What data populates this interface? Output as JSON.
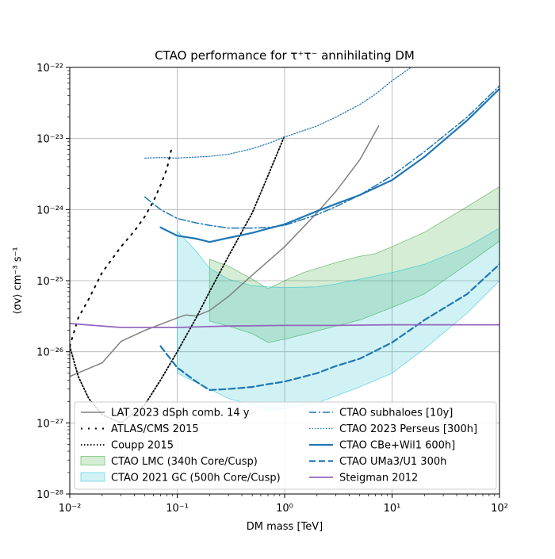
{
  "chart_data": {
    "type": "line",
    "title": "CTAO performance for τ⁺τ⁻ annihilating DM",
    "xlabel": "DM mass [TeV]",
    "ylabel": "⟨σv⟩ cm⁻³ s⁻¹",
    "xscale": "log",
    "yscale": "log",
    "xlim": [
      0.01,
      100
    ],
    "ylim": [
      1e-28,
      1e-22
    ],
    "grid": true,
    "legend_position": "lower-center",
    "x_ticks": [
      {
        "value": 0.01,
        "label": "10⁻²"
      },
      {
        "value": 0.1,
        "label": "10⁻¹"
      },
      {
        "value": 1,
        "label": "10⁰"
      },
      {
        "value": 10,
        "label": "10¹"
      },
      {
        "value": 100,
        "label": "10²"
      }
    ],
    "y_ticks": [
      {
        "value": 1e-28,
        "label": "10⁻²⁸"
      },
      {
        "value": 1e-27,
        "label": "10⁻²⁷"
      },
      {
        "value": 1e-26,
        "label": "10⁻²⁶"
      },
      {
        "value": 1e-25,
        "label": "10⁻²⁵"
      },
      {
        "value": 1e-24,
        "label": "10⁻²⁴"
      },
      {
        "value": 1e-23,
        "label": "10⁻²³"
      },
      {
        "value": 1e-22,
        "label": "10⁻²²"
      }
    ],
    "bands": [
      {
        "name": "CTAO LMC (340h Core/Cusp)",
        "fill": "#2ca02c",
        "fill_opacity": 0.2,
        "upper": [
          [
            0.2,
            2e-25
          ],
          [
            0.3,
            1.6e-25
          ],
          [
            0.5,
            1.05e-25
          ],
          [
            0.7,
            7.7e-26
          ],
          [
            1.0,
            1e-25
          ],
          [
            1.5,
            1.3e-25
          ],
          [
            3,
            1.8e-25
          ],
          [
            5,
            2.2e-25
          ],
          [
            7,
            2.4e-25
          ],
          [
            10,
            3e-25
          ],
          [
            20,
            4.8e-25
          ],
          [
            50,
            1.1e-24
          ],
          [
            100,
            2.1e-24
          ]
        ],
        "lower": [
          [
            0.2,
            2.7e-26
          ],
          [
            0.3,
            2.3e-26
          ],
          [
            0.5,
            1.8e-26
          ],
          [
            0.7,
            1.35e-26
          ],
          [
            1.0,
            1.5e-26
          ],
          [
            1.5,
            1.75e-26
          ],
          [
            3,
            2.3e-26
          ],
          [
            5,
            2.8e-26
          ],
          [
            10,
            4.2e-26
          ],
          [
            20,
            6.5e-26
          ],
          [
            50,
            1.7e-25
          ],
          [
            100,
            3.6e-25
          ]
        ]
      },
      {
        "name": "CTAO 2021 GC (500h Core/Cusp)",
        "fill": "#17becf",
        "fill_opacity": 0.2,
        "upper": [
          [
            0.1,
            5e-25
          ],
          [
            0.15,
            2.6e-25
          ],
          [
            0.2,
            1.5e-25
          ],
          [
            0.3,
            1.05e-25
          ],
          [
            0.5,
            8.5e-26
          ],
          [
            0.7,
            8.2e-26
          ],
          [
            1.0,
            8e-26
          ],
          [
            2,
            8.2e-26
          ],
          [
            3,
            9e-26
          ],
          [
            5,
            1.05e-25
          ],
          [
            10,
            1.3e-25
          ],
          [
            20,
            1.7e-25
          ],
          [
            50,
            3e-25
          ],
          [
            100,
            5.5e-25
          ]
        ],
        "lower": [
          [
            0.1,
            5e-27
          ],
          [
            0.2,
            3e-27
          ],
          [
            0.3,
            2.2e-27
          ],
          [
            0.5,
            1.8e-27
          ],
          [
            0.7,
            1.5e-27
          ],
          [
            1.0,
            1.6e-27
          ],
          [
            2,
            1.9e-27
          ],
          [
            3,
            2.4e-27
          ],
          [
            5,
            3.2e-27
          ],
          [
            10,
            5e-27
          ],
          [
            20,
            1.1e-26
          ],
          [
            50,
            3.5e-26
          ],
          [
            100,
            1e-25
          ]
        ]
      }
    ],
    "series": [
      {
        "name": "LAT 2023 dSph comb. 14 y",
        "color": "#808080",
        "width": 1.5,
        "dash": "none",
        "points": [
          [
            0.01,
            4.5e-27
          ],
          [
            0.02,
            7e-27
          ],
          [
            0.03,
            1.4e-26
          ],
          [
            0.05,
            2e-26
          ],
          [
            0.1,
            3e-26
          ],
          [
            0.12,
            3.3e-26
          ],
          [
            0.15,
            3.2e-26
          ],
          [
            0.2,
            3.8e-26
          ],
          [
            0.3,
            6e-26
          ],
          [
            0.5,
            1.2e-25
          ],
          [
            1,
            3e-25
          ],
          [
            2,
            9e-25
          ],
          [
            3,
            1.8e-24
          ],
          [
            5,
            5e-24
          ],
          [
            7.5,
            1.5e-23
          ]
        ]
      },
      {
        "name": "ATLAS/CMS 2015",
        "color": "#000000",
        "width": 2,
        "dash": "2 7",
        "points": [
          [
            0.01,
            1.2e-26
          ],
          [
            0.012,
            3e-26
          ],
          [
            0.015,
            5.5e-26
          ],
          [
            0.02,
            1.3e-25
          ],
          [
            0.03,
            3e-25
          ],
          [
            0.04,
            5e-25
          ],
          [
            0.05,
            8e-25
          ],
          [
            0.06,
            1.3e-24
          ],
          [
            0.07,
            2.2e-24
          ],
          [
            0.08,
            3.7e-24
          ],
          [
            0.09,
            8e-24
          ]
        ]
      },
      {
        "name": "Coupp 2015",
        "color": "#000000",
        "width": 1.8,
        "dash": "1.5 2.5",
        "points": [
          [
            0.01,
            1.2e-26
          ],
          [
            0.012,
            4.5e-27
          ],
          [
            0.015,
            2.2e-27
          ],
          [
            0.02,
            1.3e-27
          ],
          [
            0.03,
            1e-27
          ],
          [
            0.05,
            1.8e-27
          ],
          [
            0.07,
            4e-27
          ],
          [
            0.1,
            1e-26
          ],
          [
            0.15,
            3e-26
          ],
          [
            0.2,
            7e-26
          ],
          [
            0.3,
            2.2e-25
          ],
          [
            0.5,
            9e-25
          ],
          [
            0.7,
            3e-24
          ],
          [
            1.0,
            1.1e-23
          ]
        ]
      },
      {
        "name": "CTAO subhaloes [10y]",
        "color": "#1f77b4",
        "width": 1.5,
        "dash": "9 3 2 3",
        "points": [
          [
            0.05,
            1.5e-24
          ],
          [
            0.07,
            1e-24
          ],
          [
            0.1,
            7.5e-25
          ],
          [
            0.15,
            6.5e-25
          ],
          [
            0.2,
            6e-25
          ],
          [
            0.3,
            5.5e-25
          ],
          [
            0.5,
            5.5e-25
          ],
          [
            0.7,
            5.6e-25
          ],
          [
            1.0,
            6e-25
          ],
          [
            2,
            8.5e-25
          ],
          [
            3,
            1.1e-24
          ],
          [
            5,
            1.6e-24
          ],
          [
            10,
            3e-24
          ],
          [
            20,
            6.5e-24
          ],
          [
            50,
            2e-23
          ],
          [
            100,
            5.5e-23
          ]
        ]
      },
      {
        "name": "CTAO 2023 Perseus [300h]",
        "color": "#1f77b4",
        "width": 1.2,
        "dash": "1.5 2",
        "points": [
          [
            0.05,
            5.3e-24
          ],
          [
            0.07,
            5.4e-24
          ],
          [
            0.1,
            5.3e-24
          ],
          [
            0.2,
            5.6e-24
          ],
          [
            0.3,
            6e-24
          ],
          [
            0.5,
            7.2e-24
          ],
          [
            0.7,
            8.5e-24
          ],
          [
            1.0,
            1.05e-23
          ],
          [
            2,
            1.5e-23
          ],
          [
            3,
            2e-23
          ],
          [
            5,
            3e-23
          ],
          [
            7,
            4.2e-23
          ],
          [
            10,
            6.5e-23
          ],
          [
            15,
            1e-22
          ]
        ]
      },
      {
        "name": "CTAO CBe+Wil1 600h]",
        "color": "#1f77b4",
        "width": 2.2,
        "dash": "none",
        "points": [
          [
            0.07,
            5.6e-25
          ],
          [
            0.1,
            4.3e-25
          ],
          [
            0.15,
            3.9e-25
          ],
          [
            0.2,
            3.5e-25
          ],
          [
            0.3,
            4e-25
          ],
          [
            0.5,
            4.7e-25
          ],
          [
            0.7,
            5.4e-25
          ],
          [
            1.0,
            6.2e-25
          ],
          [
            2,
            9.5e-25
          ],
          [
            3,
            1.2e-24
          ],
          [
            5,
            1.6e-24
          ],
          [
            10,
            2.6e-24
          ],
          [
            20,
            5.5e-24
          ],
          [
            50,
            1.8e-23
          ],
          [
            100,
            5e-23
          ]
        ]
      },
      {
        "name": "CTAO UMa3/U1 300h",
        "color": "#1f77b4",
        "width": 2.2,
        "dash": "8 4",
        "points": [
          [
            0.07,
            1.2e-26
          ],
          [
            0.1,
            6e-27
          ],
          [
            0.15,
            3.8e-27
          ],
          [
            0.2,
            2.9e-27
          ],
          [
            0.3,
            3e-27
          ],
          [
            0.5,
            3.2e-27
          ],
          [
            0.7,
            3.5e-27
          ],
          [
            1.0,
            3.8e-27
          ],
          [
            2,
            5e-27
          ],
          [
            3,
            6.3e-27
          ],
          [
            5,
            8e-27
          ],
          [
            10,
            1.35e-26
          ],
          [
            20,
            2.8e-26
          ],
          [
            50,
            6.5e-26
          ],
          [
            100,
            1.7e-25
          ]
        ]
      },
      {
        "name": "Steigman 2012",
        "color": "#9467bd",
        "width": 1.8,
        "dash": "none",
        "points": [
          [
            0.01,
            2.5e-26
          ],
          [
            0.02,
            2.3e-26
          ],
          [
            0.03,
            2.2e-26
          ],
          [
            0.1,
            2.2e-26
          ],
          [
            0.3,
            2.3e-26
          ],
          [
            1,
            2.35e-26
          ],
          [
            3,
            2.35e-26
          ],
          [
            10,
            2.4e-26
          ],
          [
            100,
            2.4e-26
          ]
        ]
      }
    ],
    "legend": {
      "left": [
        {
          "label": "LAT 2023 dSph comb. 14 y",
          "kind": "line",
          "ref": 0
        },
        {
          "label": "ATLAS/CMS 2015",
          "kind": "line",
          "ref": 1
        },
        {
          "label": "Coupp 2015",
          "kind": "line",
          "ref": 2
        },
        {
          "label": "CTAO LMC (340h Core/Cusp)",
          "kind": "band",
          "ref": 0
        },
        {
          "label": "CTAO 2021 GC (500h Core/Cusp)",
          "kind": "band",
          "ref": 1
        }
      ],
      "right": [
        {
          "label": "CTAO subhaloes [10y]",
          "kind": "line",
          "ref": 3
        },
        {
          "label": "CTAO 2023 Perseus [300h]",
          "kind": "line",
          "ref": 4
        },
        {
          "label": "CTAO CBe+Wil1 600h]",
          "kind": "line",
          "ref": 5
        },
        {
          "label": "CTAO UMa3/U1 300h",
          "kind": "line",
          "ref": 6
        },
        {
          "label": "Steigman 2012",
          "kind": "line",
          "ref": 7
        }
      ]
    }
  }
}
